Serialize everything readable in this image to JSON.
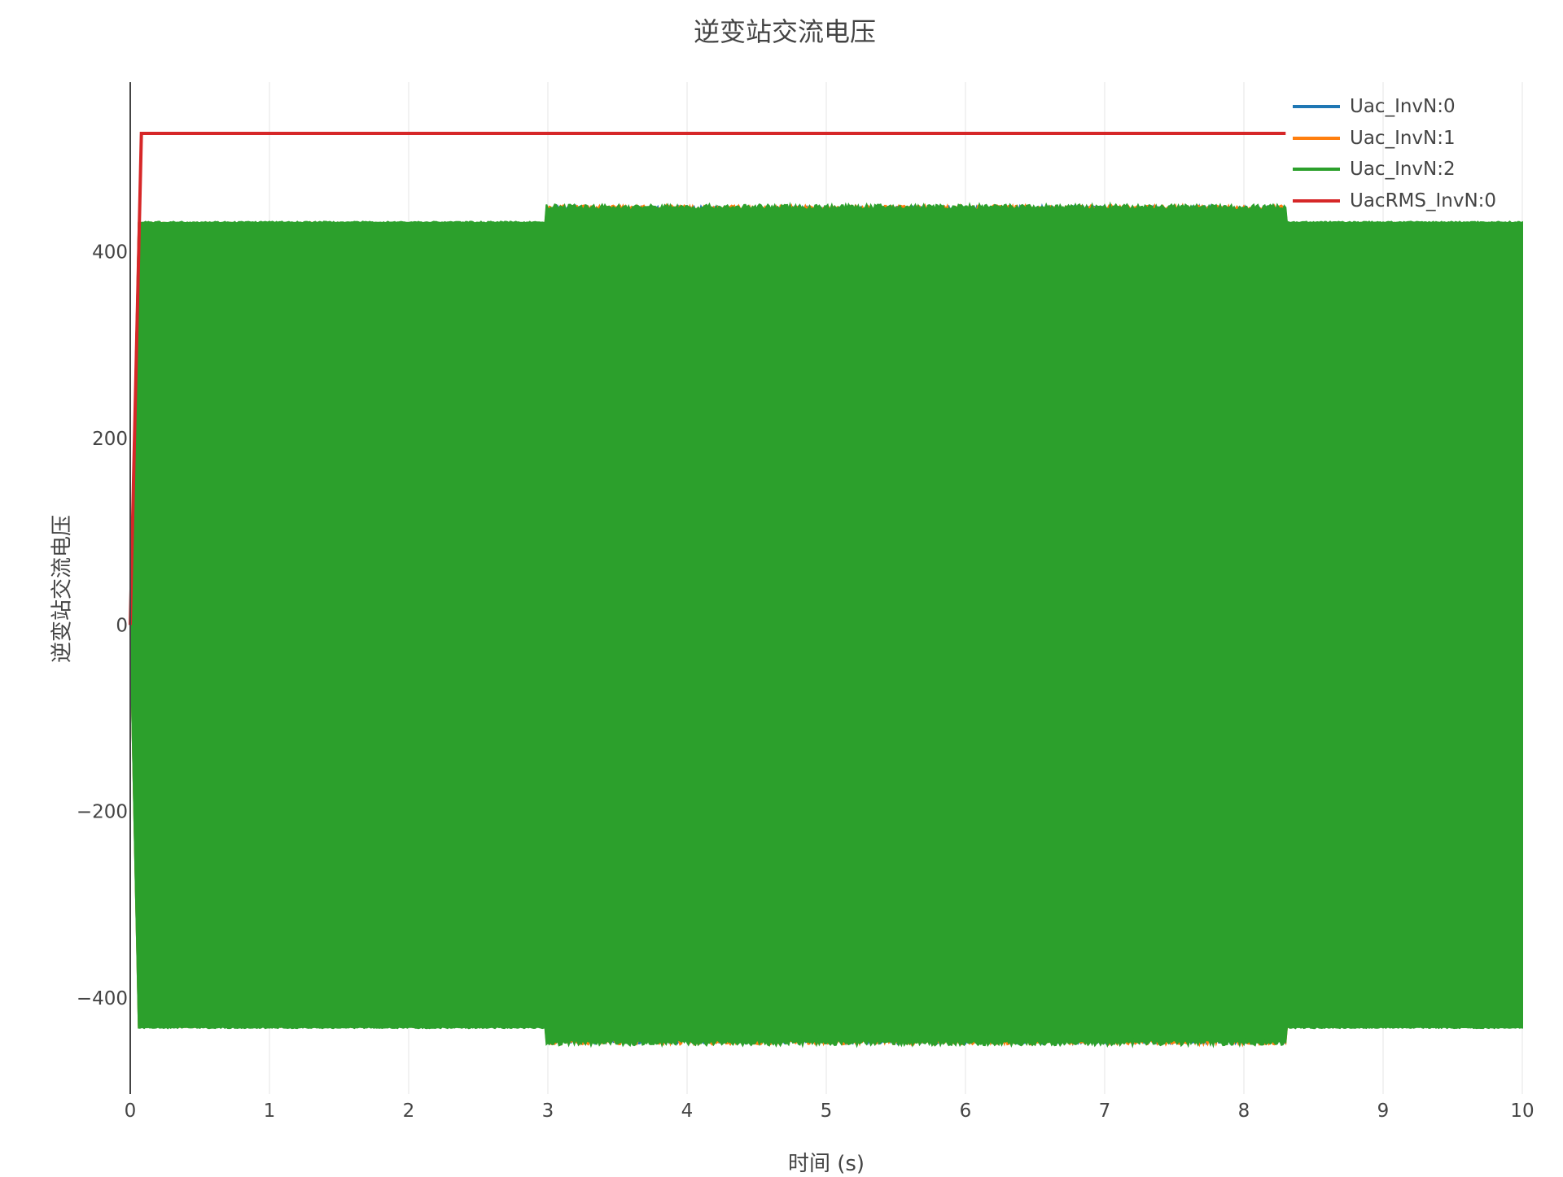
{
  "chart_data": {
    "type": "line",
    "title": "逆变站交流电压",
    "xlabel": "时间 (s)",
    "ylabel": "逆变站交流电压",
    "xlim": [
      0,
      10
    ],
    "ylim": [
      -503,
      582
    ],
    "xticks": [
      0,
      1,
      2,
      3,
      4,
      5,
      6,
      7,
      8,
      9,
      10
    ],
    "yticks": [
      -400,
      -200,
      0,
      200,
      400
    ],
    "ytick_labels": [
      "−400",
      "−200",
      "0",
      "200",
      "400"
    ],
    "grid": "vertical",
    "legend_position": "top-right",
    "series": [
      {
        "name": "Uac_InvN:0",
        "color": "#1f77b4",
        "kind": "ac-envelope",
        "amplitude_segments": [
          {
            "t": [
              0,
              2.98
            ],
            "amp": 430
          },
          {
            "t": [
              2.98,
              8.3
            ],
            "amp": 446
          },
          {
            "t": [
              8.3,
              10
            ],
            "amp": 430
          }
        ]
      },
      {
        "name": "Uac_InvN:1",
        "color": "#ff7f0e",
        "kind": "ac-envelope",
        "amplitude_segments": [
          {
            "t": [
              0,
              2.98
            ],
            "amp": 430
          },
          {
            "t": [
              2.98,
              8.3
            ],
            "amp": 446
          },
          {
            "t": [
              8.3,
              10
            ],
            "amp": 430
          }
        ]
      },
      {
        "name": "Uac_InvN:2",
        "color": "#2ca02c",
        "kind": "ac-envelope",
        "amplitude_segments": [
          {
            "t": [
              0,
              2.98
            ],
            "amp": 430
          },
          {
            "t": [
              2.98,
              8.3
            ],
            "amp": 446
          },
          {
            "t": [
              8.3,
              10
            ],
            "amp": 430
          }
        ]
      },
      {
        "name": "UacRMS_InvN:0",
        "color": "#d62728",
        "kind": "line",
        "x": [
          0,
          0.08,
          8.3
        ],
        "y": [
          0,
          527,
          527
        ]
      }
    ]
  }
}
